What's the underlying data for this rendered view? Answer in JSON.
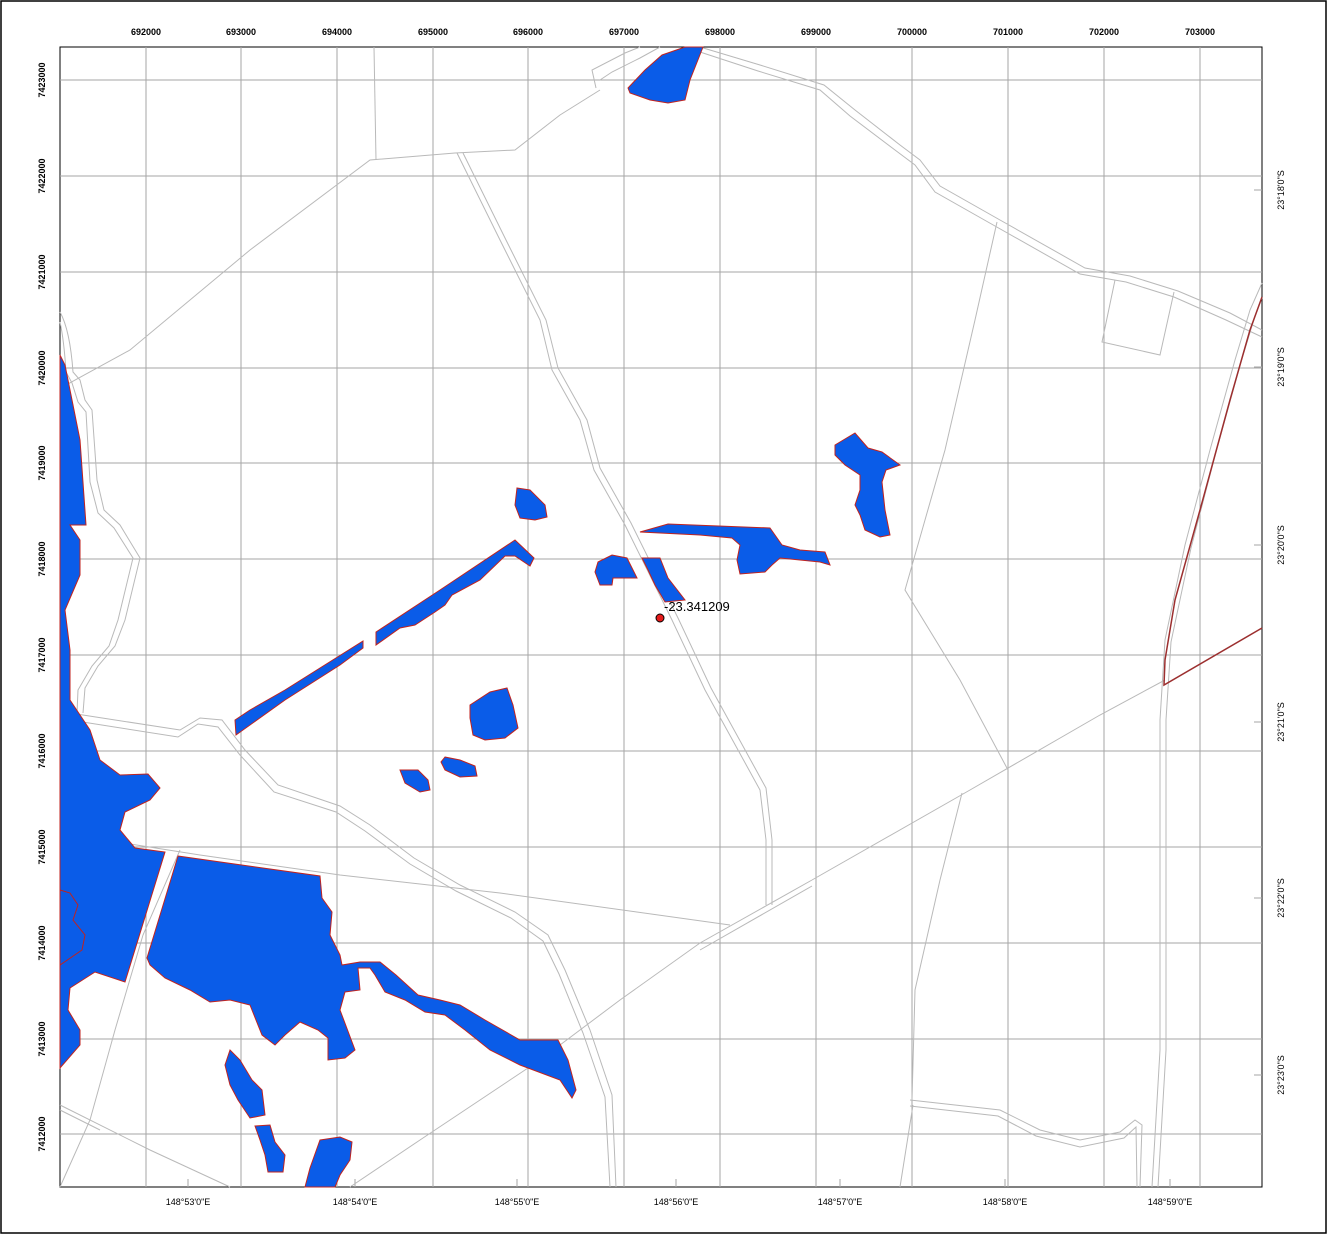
{
  "map": {
    "point_label": "-23.341209",
    "top_ticks": [
      "692000",
      "693000",
      "694000",
      "695000",
      "696000",
      "697000",
      "698000",
      "699000",
      "700000",
      "701000",
      "702000",
      "703000"
    ],
    "left_ticks": [
      "7423000",
      "7422000",
      "7421000",
      "7420000",
      "7419000",
      "7418000",
      "7417000",
      "7416000",
      "7415000",
      "7414000",
      "7413000",
      "7412000"
    ],
    "bottom_ticks": [
      "148°53'0\"E",
      "148°54'0\"E",
      "148°55'0\"E",
      "148°56'0\"E",
      "148°57'0\"E",
      "148°58'0\"E",
      "148°59'0\"E"
    ],
    "right_ticks": [
      "23°18'0\"S",
      "23°19'0\"S",
      "23°20'0\"S",
      "23°21'0\"S",
      "23°22'0\"S",
      "23°23'0\"S"
    ],
    "colors": {
      "water_fill": "#0a5ce8",
      "water_outline": "#c0231f",
      "boundary": "#9c2f2f",
      "grid": "#a6a6a6",
      "point_marker": "#e41b1b"
    },
    "icons": [
      "point-marker-icon"
    ]
  }
}
